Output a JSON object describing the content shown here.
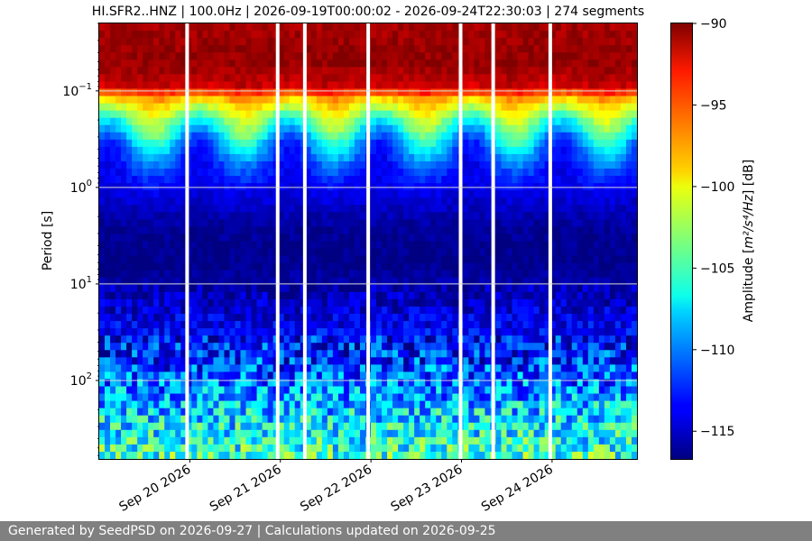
{
  "chart_data": {
    "type": "heatmap",
    "title": "HI.SFR2..HNZ | 100.0Hz | 2026-09-19T00:00:02 - 2026-09-24T22:30:03 | 274 segments",
    "ylabel": "Period [s]",
    "y_scale": "log",
    "y_range_s": [
      0.02,
      650
    ],
    "y_ticks": [
      {
        "value": 0.1,
        "base": "10",
        "exp": "−1"
      },
      {
        "value": 1,
        "base": "10",
        "exp": "0"
      },
      {
        "value": 10,
        "base": "10",
        "exp": "1"
      },
      {
        "value": 100,
        "base": "10",
        "exp": "2"
      }
    ],
    "y_axis_inverted": true,
    "x_range_days": [
      "2026-09-19T00:00:02",
      "2026-09-24T22:30:03"
    ],
    "x_ticks": [
      "Sep 20 2026",
      "Sep 21 2026",
      "Sep 22 2026",
      "Sep 23 2026",
      "Sep 24 2026"
    ],
    "grid": "horizontal",
    "data_gaps_days_from_start": [
      0.97,
      1.97,
      2.27,
      2.97,
      3.99,
      4.35,
      4.98
    ],
    "colorbar": {
      "label_prefix": "Amplitude [",
      "label_unit_math": "m²/s⁴/Hz",
      "label_suffix": "] [dB]",
      "colormap": "jet",
      "range_db": [
        -116.7,
        -90
      ],
      "ticks": [
        "−90",
        "−95",
        "−100",
        "−105",
        "−110",
        "−115"
      ],
      "tick_values": [
        -90,
        -95,
        -100,
        -105,
        -110,
        -115
      ]
    },
    "period_profile_db": [
      {
        "period": 0.02,
        "db": -91
      },
      {
        "period": 0.05,
        "db": -90.5
      },
      {
        "period": 0.09,
        "db": -92
      },
      {
        "period": 0.12,
        "db": -98
      },
      {
        "period": 0.2,
        "db": -104
      },
      {
        "period": 0.35,
        "db": -109
      },
      {
        "period": 0.6,
        "db": -112
      },
      {
        "period": 1.1,
        "db": -114
      },
      {
        "period": 2.5,
        "db": -116
      },
      {
        "period": 6,
        "db": -116.5
      },
      {
        "period": 15,
        "db": -115
      },
      {
        "period": 40,
        "db": -113
      },
      {
        "period": 90,
        "db": -111
      },
      {
        "period": 200,
        "db": -108
      },
      {
        "period": 650,
        "db": -105
      }
    ]
  },
  "footer": {
    "text": "Generated by SeedPSD on 2026-09-27 | Calculations updated on 2026-09-25"
  }
}
